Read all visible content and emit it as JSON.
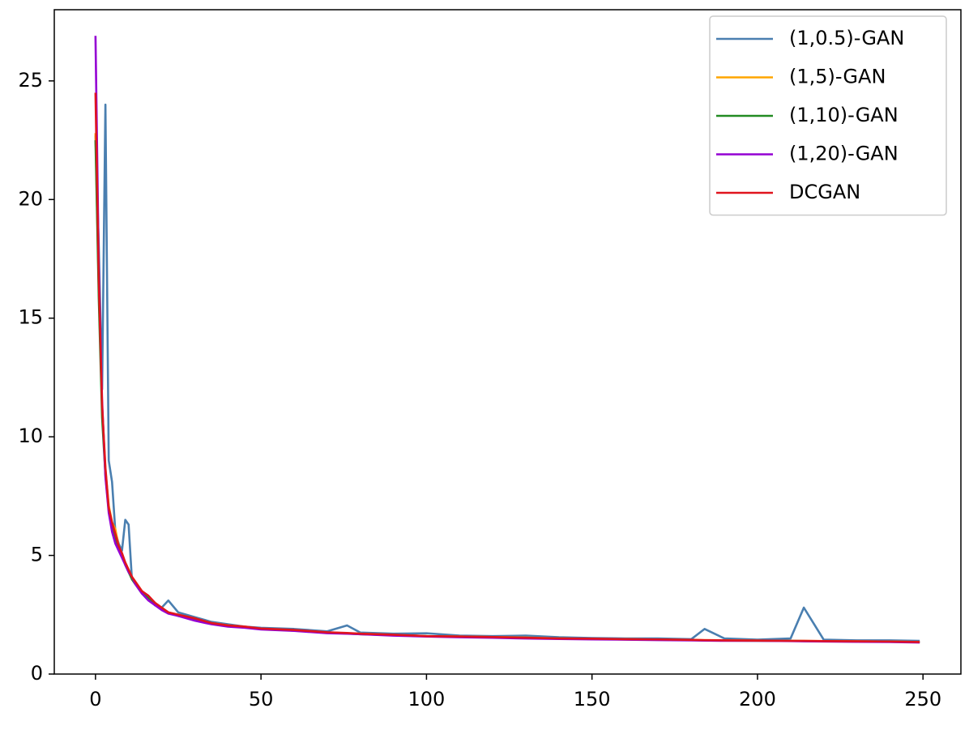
{
  "chart_data": {
    "type": "line",
    "x": [
      0,
      1,
      2,
      3,
      4,
      5,
      6,
      7,
      8,
      9,
      10,
      11,
      12,
      14,
      16,
      18,
      20,
      22,
      25,
      30,
      35,
      40,
      45,
      50,
      60,
      70,
      76,
      80,
      90,
      100,
      110,
      120,
      130,
      140,
      150,
      160,
      170,
      180,
      184,
      190,
      200,
      210,
      214,
      220,
      230,
      240,
      249
    ],
    "series": [
      {
        "name": "(1,0.5)-GAN",
        "color": "#4a7fb0",
        "values": [
          22.7,
          18,
          12,
          24,
          9,
          8.1,
          6.0,
          5.5,
          5.2,
          6.5,
          6.3,
          4.0,
          3.8,
          3.5,
          3.2,
          2.9,
          2.8,
          3.1,
          2.6,
          2.4,
          2.2,
          2.1,
          2.0,
          1.95,
          1.9,
          1.8,
          2.05,
          1.75,
          1.7,
          1.72,
          1.62,
          1.6,
          1.62,
          1.55,
          1.52,
          1.5,
          1.5,
          1.47,
          1.9,
          1.5,
          1.45,
          1.5,
          2.8,
          1.45,
          1.42,
          1.42,
          1.4
        ]
      },
      {
        "name": "(1,5)-GAN",
        "color": "#ffa500",
        "values": [
          22.8,
          16.2,
          11.2,
          8.6,
          7.1,
          6.4,
          6.1,
          5.4,
          5.0,
          4.7,
          4.4,
          4.1,
          3.9,
          3.5,
          3.2,
          3.0,
          2.8,
          2.6,
          2.5,
          2.3,
          2.15,
          2.05,
          2.0,
          1.9,
          1.85,
          1.75,
          1.72,
          1.7,
          1.65,
          1.6,
          1.58,
          1.56,
          1.54,
          1.5,
          1.48,
          1.47,
          1.45,
          1.44,
          1.43,
          1.42,
          1.41,
          1.4,
          1.4,
          1.39,
          1.38,
          1.37,
          1.35
        ]
      },
      {
        "name": "(1,10)-GAN",
        "color": "#228b22",
        "values": [
          22.5,
          15.8,
          10.8,
          8.4,
          6.9,
          6.2,
          5.7,
          5.3,
          5.0,
          4.6,
          4.3,
          4.0,
          3.8,
          3.4,
          3.2,
          2.9,
          2.75,
          2.6,
          2.45,
          2.3,
          2.12,
          2.03,
          1.98,
          1.9,
          1.83,
          1.74,
          1.71,
          1.68,
          1.64,
          1.6,
          1.57,
          1.55,
          1.52,
          1.5,
          1.48,
          1.46,
          1.45,
          1.43,
          1.42,
          1.41,
          1.4,
          1.4,
          1.39,
          1.38,
          1.37,
          1.36,
          1.34
        ]
      },
      {
        "name": "(1,20)-GAN",
        "color": "#9400d3",
        "values": [
          26.9,
          17,
          11.5,
          8.3,
          6.8,
          6.0,
          5.5,
          5.2,
          4.9,
          4.6,
          4.3,
          4.1,
          3.8,
          3.4,
          3.1,
          2.9,
          2.7,
          2.55,
          2.45,
          2.25,
          2.1,
          2.0,
          1.95,
          1.88,
          1.82,
          1.72,
          1.7,
          1.68,
          1.62,
          1.58,
          1.55,
          1.53,
          1.5,
          1.48,
          1.46,
          1.45,
          1.43,
          1.42,
          1.41,
          1.4,
          1.4,
          1.39,
          1.38,
          1.37,
          1.36,
          1.35,
          1.33
        ]
      },
      {
        "name": "DCGAN",
        "color": "#e0141e",
        "values": [
          24.5,
          16.5,
          11.3,
          8.7,
          7.0,
          6.4,
          5.9,
          5.4,
          5.1,
          4.7,
          4.4,
          4.1,
          3.9,
          3.5,
          3.3,
          3.0,
          2.8,
          2.6,
          2.5,
          2.35,
          2.15,
          2.05,
          2.0,
          1.92,
          1.86,
          1.76,
          1.73,
          1.7,
          1.66,
          1.6,
          1.58,
          1.56,
          1.53,
          1.5,
          1.49,
          1.47,
          1.46,
          1.44,
          1.43,
          1.42,
          1.41,
          1.4,
          1.4,
          1.39,
          1.38,
          1.37,
          1.35
        ]
      }
    ],
    "xlim": [
      -12.45,
      261.45
    ],
    "xticks": [
      0,
      50,
      100,
      150,
      200,
      250
    ],
    "ylim": [
      0,
      28
    ],
    "yticks": [
      0,
      5,
      10,
      15,
      20,
      25
    ],
    "legend": "upper right"
  }
}
